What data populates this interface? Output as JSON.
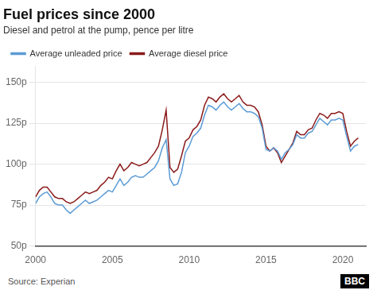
{
  "chart_data": {
    "type": "line",
    "title": "Fuel prices since 2000",
    "subtitle": "Diesel and petrol at the pump, pence per litre",
    "annotations": [
      "Source: Experian",
      "BBC"
    ],
    "x": [
      2000.0,
      2000.25,
      2000.5,
      2000.75,
      2001.0,
      2001.25,
      2001.5,
      2001.75,
      2002.0,
      2002.25,
      2002.5,
      2002.75,
      2003.0,
      2003.25,
      2003.5,
      2003.75,
      2004.0,
      2004.25,
      2004.5,
      2004.75,
      2005.0,
      2005.25,
      2005.5,
      2005.75,
      2006.0,
      2006.25,
      2006.5,
      2006.75,
      2007.0,
      2007.25,
      2007.5,
      2007.75,
      2008.0,
      2008.25,
      2008.5,
      2008.75,
      2009.0,
      2009.25,
      2009.5,
      2009.75,
      2010.0,
      2010.25,
      2010.5,
      2010.75,
      2011.0,
      2011.25,
      2011.5,
      2011.75,
      2012.0,
      2012.25,
      2012.5,
      2012.75,
      2013.0,
      2013.25,
      2013.5,
      2013.75,
      2014.0,
      2014.25,
      2014.5,
      2014.75,
      2015.0,
      2015.25,
      2015.5,
      2015.75,
      2016.0,
      2016.25,
      2016.5,
      2016.75,
      2017.0,
      2017.25,
      2017.5,
      2017.75,
      2018.0,
      2018.25,
      2018.5,
      2018.75,
      2019.0,
      2019.25,
      2019.5,
      2019.75,
      2020.0,
      2020.25,
      2020.5,
      2020.75,
      2021.0
    ],
    "series": [
      {
        "name": "Average unleaded price",
        "color": "#5b9bd5",
        "values": [
          76,
          80,
          82,
          83,
          80,
          76,
          75,
          75,
          72,
          70,
          72,
          74,
          76,
          78,
          76,
          77,
          78,
          80,
          82,
          84,
          83,
          87,
          91,
          87,
          89,
          92,
          93,
          92,
          92,
          94,
          96,
          98,
          102,
          110,
          115,
          91,
          87,
          88,
          95,
          107,
          111,
          117,
          119,
          122,
          130,
          136,
          135,
          133,
          136,
          138,
          135,
          133,
          135,
          137,
          134,
          132,
          132,
          131,
          129,
          122,
          109,
          108,
          110,
          108,
          103,
          107,
          109,
          112,
          118,
          116,
          116,
          119,
          120,
          124,
          128,
          126,
          124,
          127,
          127,
          128,
          127,
          117,
          108,
          111,
          112
        ]
      },
      {
        "name": "Average diesel price",
        "color": "#8b1a1a",
        "values": [
          80,
          84,
          86,
          86,
          83,
          80,
          79,
          79,
          77,
          76,
          77,
          79,
          81,
          83,
          82,
          83,
          84,
          87,
          89,
          92,
          91,
          96,
          100,
          96,
          98,
          101,
          100,
          99,
          100,
          101,
          104,
          107,
          111,
          121,
          133,
          98,
          95,
          97,
          105,
          114,
          116,
          121,
          123,
          127,
          136,
          141,
          140,
          138,
          141,
          143,
          140,
          138,
          140,
          142,
          138,
          136,
          136,
          135,
          132,
          124,
          111,
          108,
          110,
          107,
          101,
          105,
          109,
          113,
          120,
          118,
          118,
          121,
          122,
          127,
          131,
          130,
          128,
          131,
          131,
          132,
          131,
          120,
          111,
          114,
          116
        ]
      }
    ],
    "xlim": [
      2000.0,
      2021.5
    ],
    "xticks": [
      2000,
      2005,
      2010,
      2015,
      2020
    ],
    "ylim": [
      50,
      160
    ],
    "yticks": [
      {
        "value": 50,
        "label": "50p"
      },
      {
        "value": 75,
        "label": "75p"
      },
      {
        "value": 100,
        "label": "100p"
      },
      {
        "value": 125,
        "label": "125p"
      },
      {
        "value": 150,
        "label": "150p"
      }
    ],
    "grid": "y",
    "legend": "top"
  }
}
